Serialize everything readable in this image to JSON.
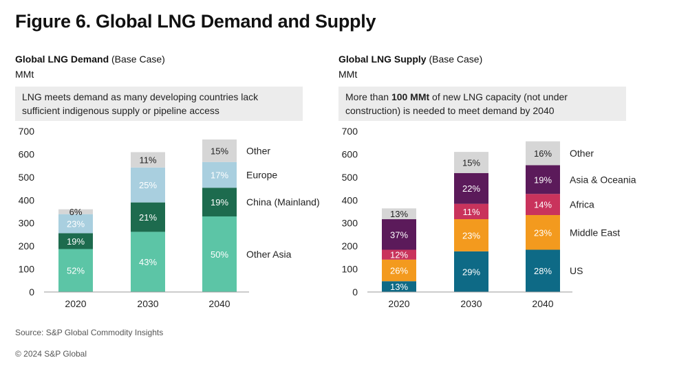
{
  "figure_title": "Figure 6. Global LNG Demand and Supply",
  "demand": {
    "title_bold": "Global LNG Demand",
    "title_rest": " (Base Case)",
    "unit": "MMt",
    "note": "LNG meets demand as many developing countries lack sufficient indigenous supply or pipeline access"
  },
  "supply": {
    "title_bold": "Global LNG Supply",
    "title_rest": " (Base Case)",
    "unit": "MMt",
    "note_pre": "More than ",
    "note_bold": "100 MMt",
    "note_post": " of new LNG capacity (not under construction) is needed to meet demand by 2040"
  },
  "source": "Source: S&P Global Commodity Insights",
  "copyright": "© 2024 S&P Global",
  "chart_data": [
    {
      "type": "bar",
      "stacked": true,
      "title": "Global LNG Demand (Base Case)",
      "ylabel": "MMt",
      "ylim": [
        0,
        700
      ],
      "yticks": [
        0,
        100,
        200,
        300,
        400,
        500,
        600,
        700
      ],
      "categories": [
        "2020",
        "2030",
        "2040"
      ],
      "grid": false,
      "legend": "right",
      "series": [
        {
          "name": "Other Asia",
          "color": "#5cc5a6",
          "values": [
            187,
            262,
            329
          ],
          "labels": [
            "52%",
            "43%",
            "50%"
          ],
          "label_color": "#ffffff"
        },
        {
          "name": "China (Mainland)",
          "color": "#1d6b4e",
          "values": [
            69,
            128,
            125
          ],
          "labels": [
            "19%",
            "21%",
            "19%"
          ],
          "label_color": "#ffffff"
        },
        {
          "name": "Europe",
          "color": "#a9cfdf",
          "values": [
            83,
            152,
            112
          ],
          "labels": [
            "23%",
            "25%",
            "17%"
          ],
          "label_color": "#ffffff"
        },
        {
          "name": "Other",
          "color": "#d6d6d6",
          "values": [
            21,
            67,
            98
          ],
          "labels": [
            "6%",
            "11%",
            "15%"
          ],
          "label_color": "#222222"
        }
      ]
    },
    {
      "type": "bar",
      "stacked": true,
      "title": "Global LNG Supply (Base Case)",
      "ylabel": "MMt",
      "ylim": [
        0,
        700
      ],
      "yticks": [
        0,
        100,
        200,
        300,
        400,
        500,
        600,
        700
      ],
      "categories": [
        "2020",
        "2030",
        "2040"
      ],
      "grid": false,
      "legend": "right",
      "series": [
        {
          "name": "US",
          "color": "#0e6a86",
          "values": [
            47,
            177,
            184
          ],
          "labels": [
            "13%",
            "29%",
            "28%"
          ],
          "label_color": "#ffffff"
        },
        {
          "name": "Middle East",
          "color": "#f39a1e",
          "values": [
            94,
            140,
            151
          ],
          "labels": [
            "26%",
            "23%",
            "23%"
          ],
          "label_color": "#ffffff"
        },
        {
          "name": "Africa",
          "color": "#c9335c",
          "values": [
            43,
            67,
            92
          ],
          "labels": [
            "12%",
            "11%",
            "14%"
          ],
          "label_color": "#ffffff"
        },
        {
          "name": "Asia & Oceania",
          "color": "#5b1a5a",
          "values": [
            133,
            134,
            125
          ],
          "labels": [
            "37%",
            "22%",
            "19%"
          ],
          "label_color": "#ffffff"
        },
        {
          "name": "Other",
          "color": "#d6d6d6",
          "values": [
            47,
            92,
            104
          ],
          "labels": [
            "13%",
            "15%",
            "16%"
          ],
          "label_color": "#222222"
        }
      ]
    }
  ]
}
